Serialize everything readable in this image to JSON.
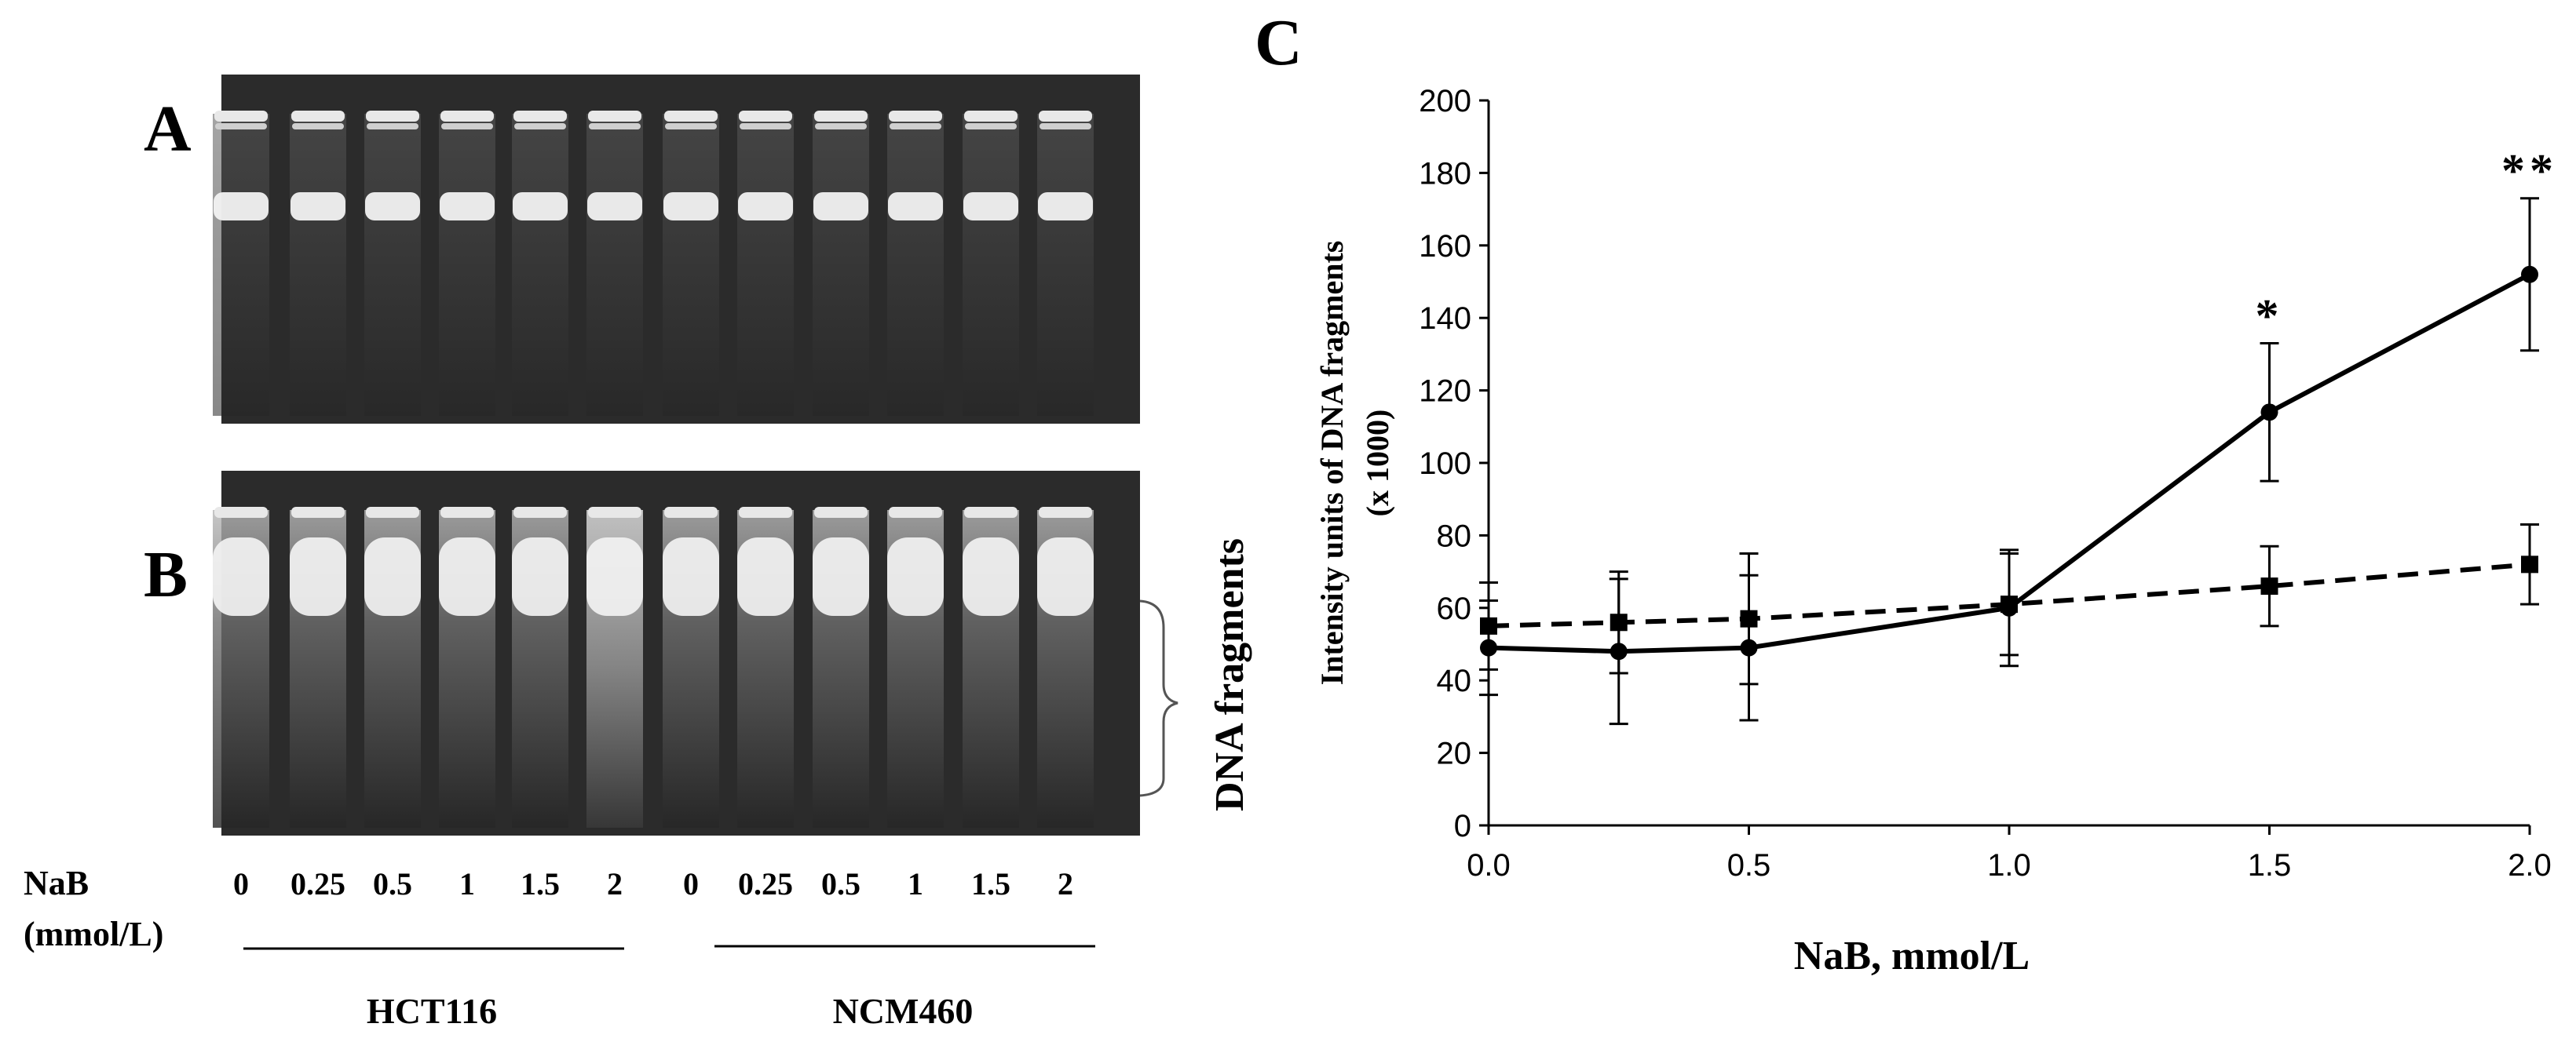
{
  "panels": {
    "a_label": "A",
    "b_label": "B",
    "c_label": "C"
  },
  "gel": {
    "nab_label": "NaB",
    "unit_label": "(mmol/L)",
    "lane_labels": [
      "0",
      "0.25",
      "0.5",
      "1",
      "1.5",
      "2",
      "0",
      "0.25",
      "0.5",
      "1",
      "1.5",
      "2"
    ],
    "group_labels": [
      "HCT116",
      "NCM460"
    ],
    "fragments_label": "DNA fragments",
    "colors": {
      "background": "#2b2b2b",
      "band": "#f2f2f2"
    }
  },
  "chart_data": {
    "type": "line",
    "xlabel": "NaB, mmol/L",
    "ylabel_line1": "Intensity units of DNA fragments",
    "ylabel_line2": "(x 1000)",
    "xlim": [
      0,
      2
    ],
    "ylim": [
      0,
      200
    ],
    "x_ticks": [
      "0.0",
      "0.5",
      "1.0",
      "1.5",
      "2.0"
    ],
    "y_ticks": [
      "0",
      "20",
      "40",
      "60",
      "80",
      "100",
      "120",
      "140",
      "160",
      "180",
      "200"
    ],
    "grid": false,
    "series": [
      {
        "style": "solid",
        "marker": "circle",
        "x": [
          0,
          0.25,
          0.5,
          1.0,
          1.5,
          2.0
        ],
        "y": [
          49,
          48,
          49,
          60,
          114,
          152
        ],
        "error": [
          13,
          20,
          20,
          16,
          19,
          21
        ]
      },
      {
        "style": "dashed",
        "marker": "square",
        "x": [
          0,
          0.25,
          0.5,
          1.0,
          1.5,
          2.0
        ],
        "y": [
          55,
          56,
          57,
          61,
          66,
          72
        ],
        "error": [
          12,
          14,
          18,
          14,
          11,
          11
        ]
      }
    ],
    "annotations": [
      {
        "x": 1.5,
        "y": 135,
        "text": "*"
      },
      {
        "x": 2.0,
        "y": 175,
        "text": "**"
      }
    ]
  }
}
